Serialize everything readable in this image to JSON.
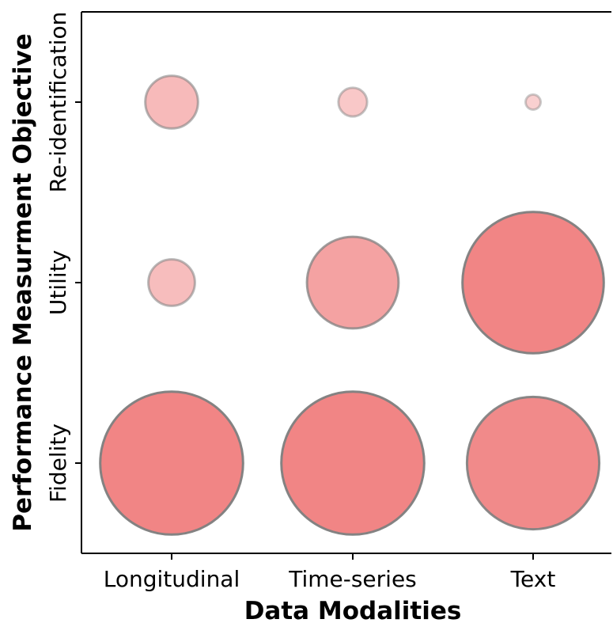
{
  "chart_data": {
    "type": "bubble",
    "xlabel": "Data Modalities",
    "ylabel": "Performance Measurment Objective",
    "x_categories": [
      "Longitudinal",
      "Time-series",
      "Text"
    ],
    "y_categories": [
      "Fidelity",
      "Utility",
      "Re-identification"
    ],
    "size_range": [
      0,
      10
    ],
    "color": "#f08080",
    "edge_color": "#808080",
    "grid": false,
    "points": [
      {
        "x": "Longitudinal",
        "y": "Re-identification",
        "size": 3.5
      },
      {
        "x": "Time-series",
        "y": "Re-identification",
        "size": 1.9
      },
      {
        "x": "Text",
        "y": "Re-identification",
        "size": 1.0
      },
      {
        "x": "Longitudinal",
        "y": "Utility",
        "size": 3.1
      },
      {
        "x": "Time-series",
        "y": "Utility",
        "size": 6.1
      },
      {
        "x": "Text",
        "y": "Utility",
        "size": 9.4
      },
      {
        "x": "Longitudinal",
        "y": "Fidelity",
        "size": 9.5
      },
      {
        "x": "Time-series",
        "y": "Fidelity",
        "size": 9.5
      },
      {
        "x": "Text",
        "y": "Fidelity",
        "size": 8.8
      }
    ]
  }
}
